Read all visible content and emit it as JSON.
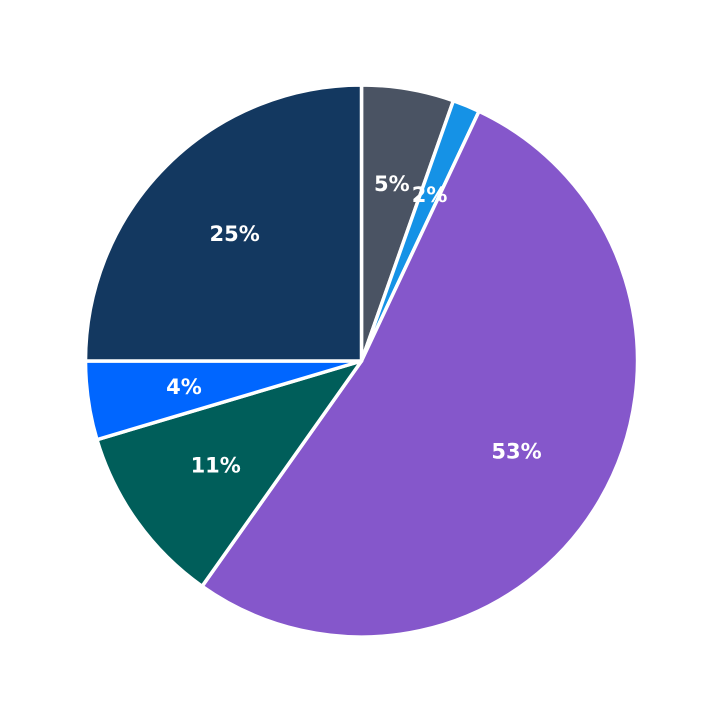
{
  "chart_data": {
    "type": "pie",
    "title": "",
    "start_angle": "top",
    "direction": "clockwise",
    "slices": [
      {
        "label": "5%",
        "value": 5.4,
        "color": "#4a5363"
      },
      {
        "label": "2%",
        "value": 1.6,
        "color": "#1592e6"
      },
      {
        "label": "53%",
        "value": 52.8,
        "color": "#8557cb"
      },
      {
        "label": "11%",
        "value": 10.6,
        "color": "#005e5a"
      },
      {
        "label": "4%",
        "value": 4.6,
        "color": "#0066ff"
      },
      {
        "label": "25%",
        "value": 25.0,
        "color": "#133860"
      }
    ],
    "edge_color": "#ffffff"
  }
}
